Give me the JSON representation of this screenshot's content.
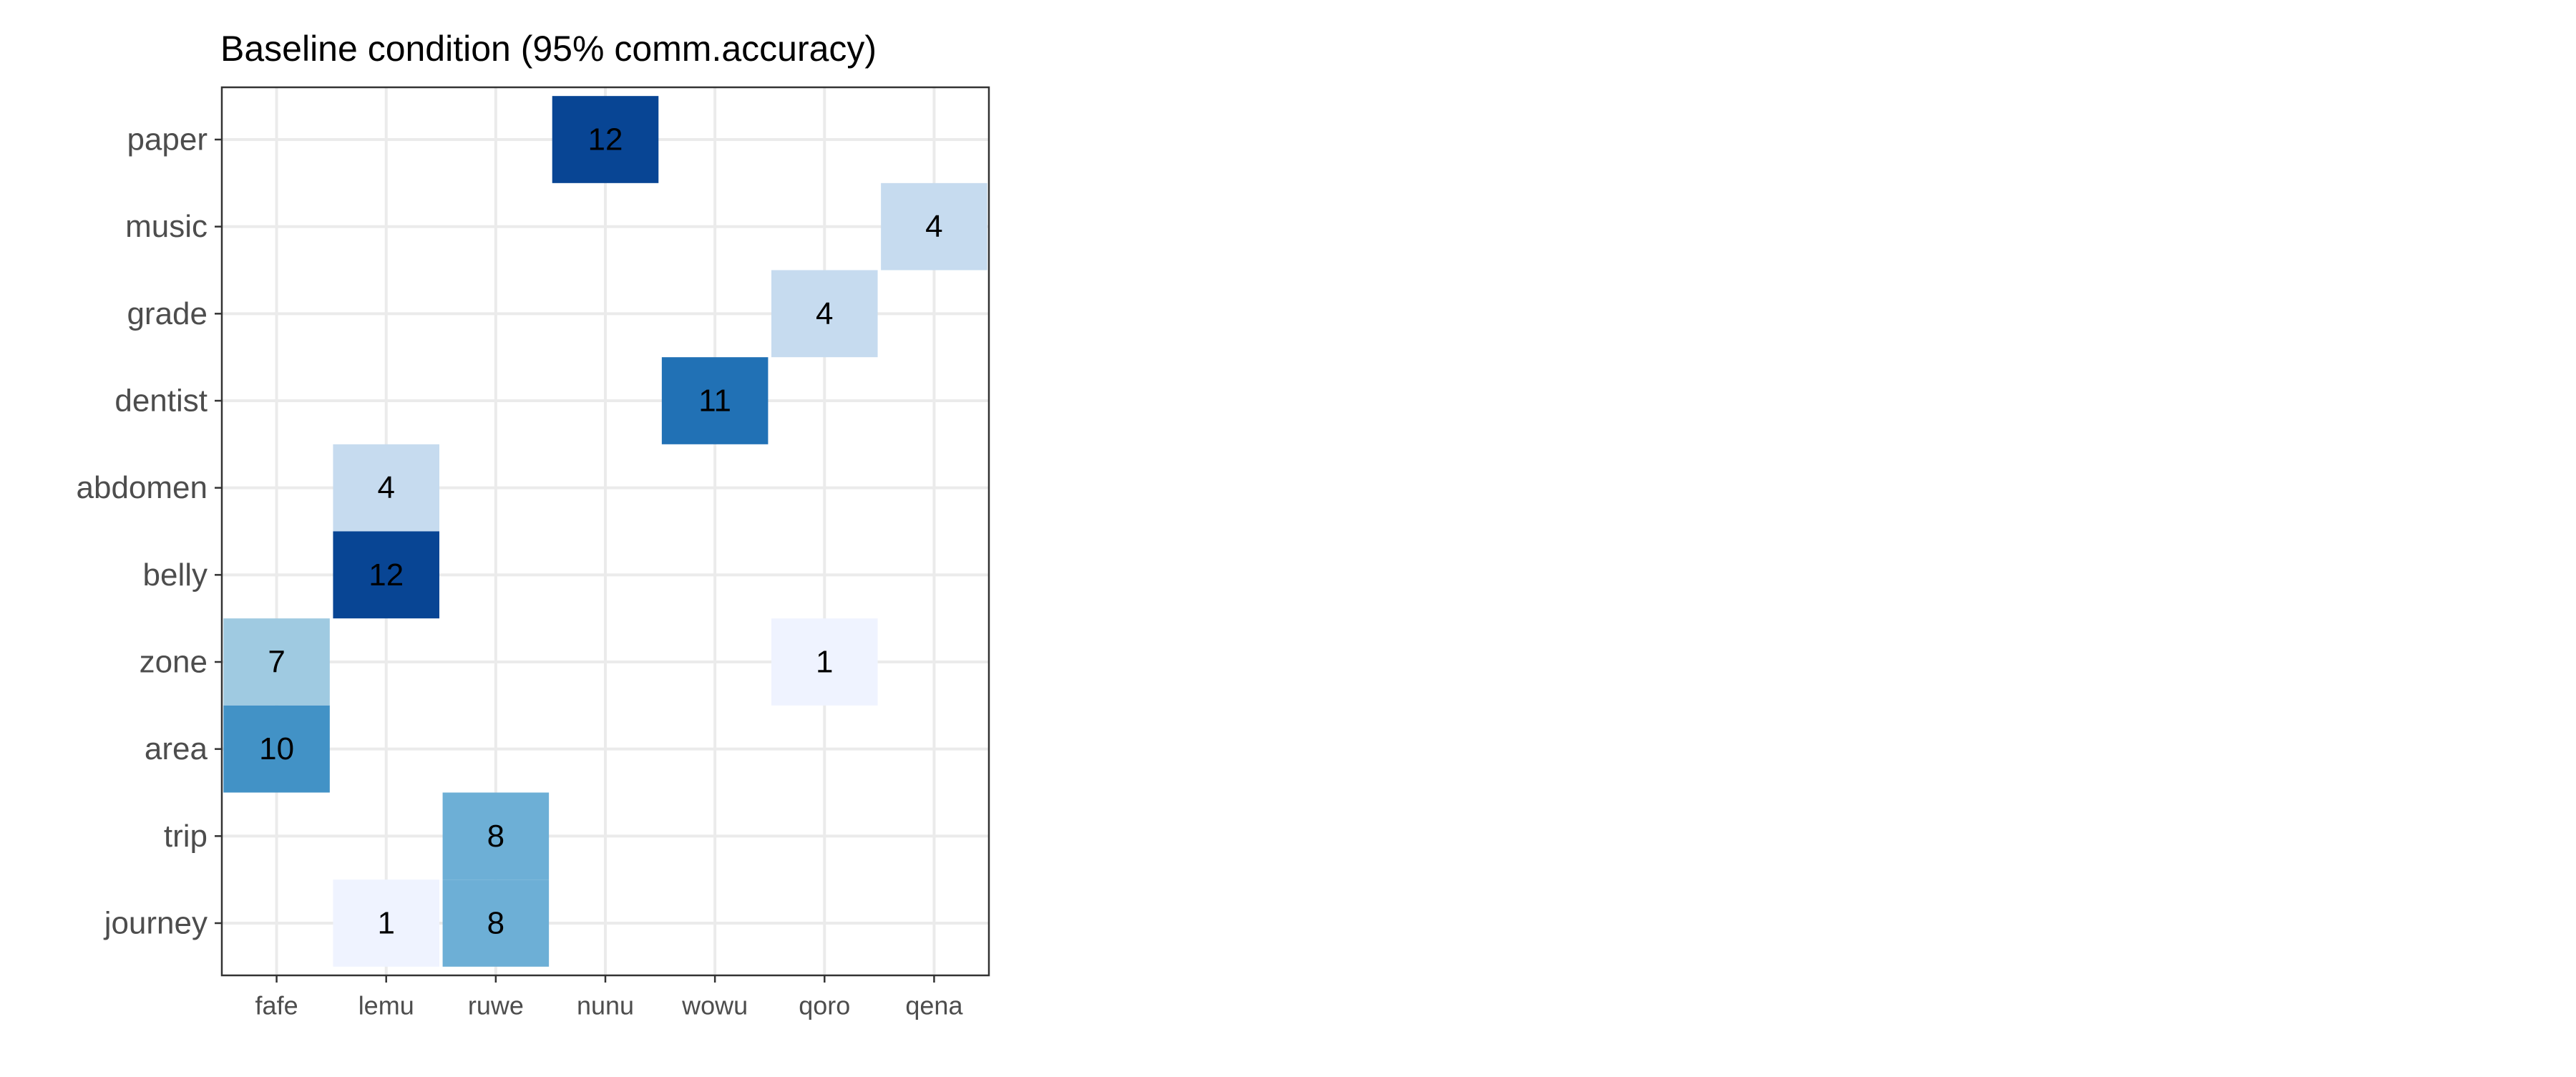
{
  "chart_data": {
    "type": "heatmap",
    "title": "Baseline condition (95% comm.accuracy)",
    "xlabel": "",
    "ylabel": "",
    "x_categories": [
      "fafe",
      "lemu",
      "ruwe",
      "nunu",
      "wowu",
      "qoro",
      "qena"
    ],
    "y_categories": [
      "paper",
      "music",
      "grade",
      "dentist",
      "abdomen",
      "belly",
      "zone",
      "area",
      "trip",
      "journey"
    ],
    "color_scale": "Blues",
    "value_range": [
      1,
      12
    ],
    "grid": true,
    "legend": "none",
    "cells": [
      {
        "x": "nunu",
        "y": "paper",
        "value": 12
      },
      {
        "x": "qena",
        "y": "music",
        "value": 4
      },
      {
        "x": "qoro",
        "y": "grade",
        "value": 4
      },
      {
        "x": "wowu",
        "y": "dentist",
        "value": 11
      },
      {
        "x": "lemu",
        "y": "abdomen",
        "value": 4
      },
      {
        "x": "lemu",
        "y": "belly",
        "value": 12
      },
      {
        "x": "fafe",
        "y": "zone",
        "value": 7
      },
      {
        "x": "qoro",
        "y": "zone",
        "value": 1
      },
      {
        "x": "fafe",
        "y": "area",
        "value": 10
      },
      {
        "x": "ruwe",
        "y": "trip",
        "value": 8
      },
      {
        "x": "lemu",
        "y": "journey",
        "value": 1
      },
      {
        "x": "ruwe",
        "y": "journey",
        "value": 8
      }
    ]
  }
}
